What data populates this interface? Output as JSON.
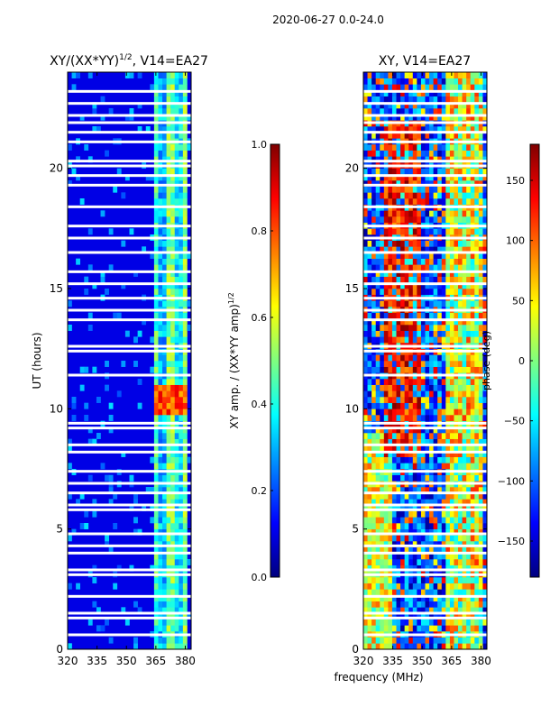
{
  "figure": {
    "suptitle": "2020-06-27 0.0-24.0",
    "xlabel": "frequency (MHz)"
  },
  "colors": {
    "jet": [
      "#00007f",
      "#0000ff",
      "#007fff",
      "#00ffff",
      "#7fff7f",
      "#ffff00",
      "#ff7f00",
      "#ff0000",
      "#7f0000"
    ],
    "gap": "#ffffff",
    "frame": "#000000"
  },
  "chart_data": [
    {
      "type": "heatmap",
      "title_text": "XY/(XX*YY)",
      "title_sup": "1/2",
      "title_rest": ", V14=EA27",
      "xlabel": "",
      "ylabel": "UT (hours)",
      "xlim": [
        320,
        383
      ],
      "ylim": [
        0,
        24
      ],
      "xticks": [
        "320",
        "335",
        "350",
        "365",
        "380"
      ],
      "xtick_values": [
        320,
        335,
        350,
        365,
        380
      ],
      "yticks": [
        "0",
        "5",
        "10",
        "15",
        "20"
      ],
      "ytick_values": [
        0,
        5,
        10,
        15,
        20
      ],
      "value_range": [
        0.0,
        1.0
      ],
      "background_value": 0.1,
      "bands": [
        {
          "from": 364,
          "to": 366,
          "value": 0.45
        },
        {
          "from": 366,
          "to": 370,
          "value": 0.3
        },
        {
          "from": 370,
          "to": 374,
          "value": 0.5
        },
        {
          "from": 374,
          "to": 379,
          "value": 0.35
        },
        {
          "from": 379,
          "to": 381,
          "value": 0.5
        }
      ],
      "highlight": {
        "hours": [
          9.7,
          10.9
        ],
        "freq": [
          364,
          381
        ],
        "value": 0.8
      },
      "colorbar": {
        "label_text": "XY amp. / (XX*YY amp)",
        "label_sup": "1/2",
        "ticks": [
          "0.0",
          "0.2",
          "0.4",
          "0.6",
          "0.8",
          "1.0"
        ],
        "tick_values": [
          0.0,
          0.2,
          0.4,
          0.6,
          0.8,
          1.0
        ],
        "extra_label": ""
      }
    },
    {
      "type": "heatmap",
      "title_text": "XY, V14=EA27",
      "title_sup": "",
      "title_rest": "",
      "xlabel": "frequency (MHz)",
      "ylabel": "",
      "xlim": [
        320,
        383
      ],
      "ylim": [
        0,
        24
      ],
      "xticks": [
        "320",
        "335",
        "350",
        "365",
        "380"
      ],
      "xtick_values": [
        320,
        335,
        350,
        365,
        380
      ],
      "yticks": [
        "0",
        "5",
        "10",
        "15",
        "20"
      ],
      "ytick_values": [
        0,
        5,
        10,
        15,
        20
      ],
      "value_range": [
        -180,
        180
      ],
      "background_value": -120,
      "colorbar": {
        "label_text": "",
        "label_sup": "",
        "ticks": [
          "−150",
          "−100",
          "−50",
          "0",
          "50",
          "100",
          "150"
        ],
        "tick_values": [
          -150,
          -100,
          -50,
          0,
          50,
          100,
          150
        ],
        "extra_label": "phase (deg)"
      }
    }
  ],
  "gap_hours": [
    0.6,
    1.3,
    1.5,
    2.2,
    3.1,
    3.3,
    4.0,
    4.3,
    4.8,
    5.8,
    6.0,
    6.5,
    6.9,
    7.4,
    8.2,
    8.5,
    9.2,
    9.4,
    11.4,
    12.4,
    12.6,
    13.7,
    14.1,
    14.6,
    15.2,
    15.7,
    16.5,
    17.1,
    17.6,
    18.4,
    19.3,
    19.7,
    20.1,
    20.3,
    21.1,
    21.5,
    21.9,
    22.2,
    22.7,
    23.2
  ]
}
